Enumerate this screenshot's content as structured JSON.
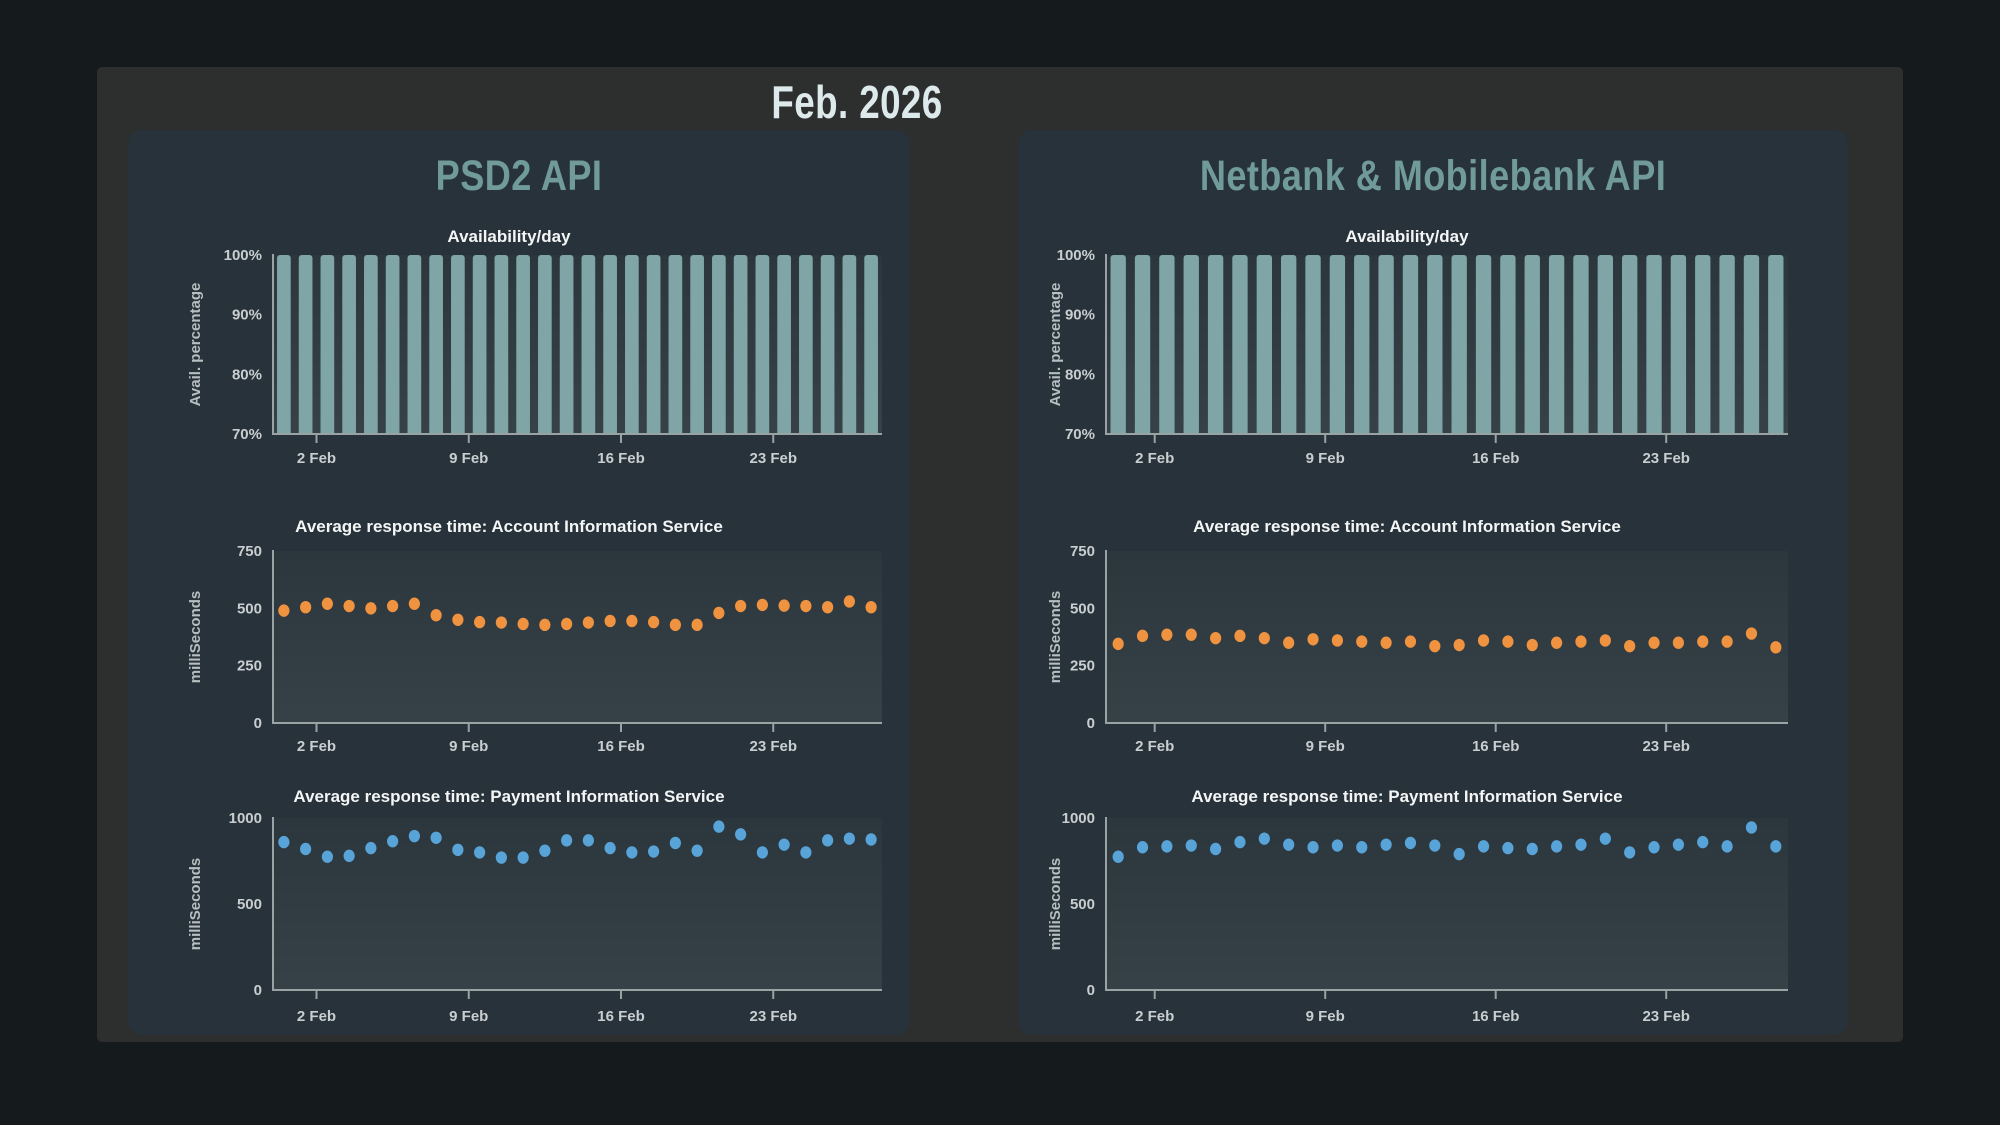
{
  "header": {
    "title": "Feb. 2026"
  },
  "panels": [
    {
      "title": "PSD2 API"
    },
    {
      "title": "Netbank & Mobilebank API"
    }
  ],
  "colors": {
    "page_background": "#151a1c",
    "container_background": "#2d2e2e",
    "card_background": "#27323a",
    "panel_title": "#719a9a",
    "bar_teal": "#7fa5a6",
    "dot_orange": "#f09340",
    "dot_blue": "#58a4d8",
    "axis_line": "#99a3a4",
    "tick_text": "#c9cfd0",
    "title_text": "#f4f6f6"
  },
  "chart_data": [
    {
      "panel": 0,
      "slot": 0,
      "type": "bar",
      "title": "Availability/day",
      "ylabel": "Avail. percentage",
      "ylim": [
        70,
        100
      ],
      "yticks": [
        {
          "v": 70,
          "label": "70%"
        },
        {
          "v": 80,
          "label": "80%"
        },
        {
          "v": 90,
          "label": "90%"
        },
        {
          "v": 100,
          "label": "100%"
        }
      ],
      "xticks": [
        {
          "day": 2,
          "label": "2 Feb"
        },
        {
          "day": 9,
          "label": "9 Feb"
        },
        {
          "day": 16,
          "label": "16 Feb"
        },
        {
          "day": 23,
          "label": "23 Feb"
        }
      ],
      "days": 28,
      "color": "#7fa5a6",
      "values": [
        100,
        100,
        100,
        100,
        100,
        100,
        100,
        100,
        100,
        100,
        100,
        100,
        100,
        100,
        100,
        100,
        100,
        100,
        100,
        100,
        100,
        100,
        100,
        100,
        100,
        100,
        100,
        100
      ]
    },
    {
      "panel": 0,
      "slot": 1,
      "type": "scatter",
      "title": "Average response time: Account Information Service",
      "ylabel": "milliSeconds",
      "ylim": [
        0,
        750
      ],
      "yticks": [
        {
          "v": 0,
          "label": "0"
        },
        {
          "v": 250,
          "label": "250"
        },
        {
          "v": 500,
          "label": "500"
        },
        {
          "v": 750,
          "label": "750"
        }
      ],
      "xticks": [
        {
          "day": 2,
          "label": "2 Feb"
        },
        {
          "day": 9,
          "label": "9 Feb"
        },
        {
          "day": 16,
          "label": "16 Feb"
        },
        {
          "day": 23,
          "label": "23 Feb"
        }
      ],
      "days": 28,
      "color": "#f09340",
      "values": [
        490,
        505,
        520,
        510,
        500,
        510,
        520,
        470,
        450,
        440,
        438,
        432,
        428,
        432,
        438,
        445,
        445,
        440,
        428,
        428,
        480,
        510,
        515,
        512,
        510,
        505,
        530,
        505
      ]
    },
    {
      "panel": 0,
      "slot": 2,
      "type": "scatter",
      "title": "Average response time: Payment Information Service",
      "ylabel": "milliSeconds",
      "ylim": [
        0,
        1000
      ],
      "yticks": [
        {
          "v": 0,
          "label": "0"
        },
        {
          "v": 500,
          "label": "500"
        },
        {
          "v": 1000,
          "label": "1000"
        }
      ],
      "xticks": [
        {
          "day": 2,
          "label": "2 Feb"
        },
        {
          "day": 9,
          "label": "9 Feb"
        },
        {
          "day": 16,
          "label": "16 Feb"
        },
        {
          "day": 23,
          "label": "23 Feb"
        }
      ],
      "days": 28,
      "color": "#58a4d8",
      "values": [
        860,
        820,
        775,
        780,
        825,
        865,
        895,
        885,
        815,
        800,
        770,
        770,
        810,
        870,
        870,
        825,
        800,
        805,
        855,
        810,
        950,
        905,
        800,
        845,
        800,
        870,
        880,
        875
      ]
    },
    {
      "panel": 1,
      "slot": 0,
      "type": "bar",
      "title": "Availability/day",
      "ylabel": "Avail. percentage",
      "ylim": [
        70,
        100
      ],
      "yticks": [
        {
          "v": 70,
          "label": "70%"
        },
        {
          "v": 80,
          "label": "80%"
        },
        {
          "v": 90,
          "label": "90%"
        },
        {
          "v": 100,
          "label": "100%"
        }
      ],
      "xticks": [
        {
          "day": 2,
          "label": "2 Feb"
        },
        {
          "day": 9,
          "label": "9 Feb"
        },
        {
          "day": 16,
          "label": "16 Feb"
        },
        {
          "day": 23,
          "label": "23 Feb"
        }
      ],
      "days": 28,
      "color": "#7fa5a6",
      "values": [
        100,
        100,
        100,
        100,
        100,
        100,
        100,
        100,
        100,
        100,
        100,
        100,
        100,
        100,
        100,
        100,
        100,
        100,
        100,
        100,
        100,
        100,
        100,
        100,
        100,
        100,
        100,
        100
      ]
    },
    {
      "panel": 1,
      "slot": 1,
      "type": "scatter",
      "title": "Average response time: Account Information Service",
      "ylabel": "milliSeconds",
      "ylim": [
        0,
        750
      ],
      "yticks": [
        {
          "v": 0,
          "label": "0"
        },
        {
          "v": 250,
          "label": "250"
        },
        {
          "v": 500,
          "label": "500"
        },
        {
          "v": 750,
          "label": "750"
        }
      ],
      "xticks": [
        {
          "day": 2,
          "label": "2 Feb"
        },
        {
          "day": 9,
          "label": "9 Feb"
        },
        {
          "day": 16,
          "label": "16 Feb"
        },
        {
          "day": 23,
          "label": "23 Feb"
        }
      ],
      "days": 28,
      "color": "#f09340",
      "values": [
        345,
        380,
        385,
        385,
        370,
        380,
        370,
        350,
        365,
        360,
        355,
        350,
        355,
        335,
        340,
        360,
        355,
        340,
        350,
        355,
        360,
        335,
        350,
        350,
        355,
        355,
        390,
        330
      ]
    },
    {
      "panel": 1,
      "slot": 2,
      "type": "scatter",
      "title": "Average response time: Payment Information Service",
      "ylabel": "milliSeconds",
      "ylim": [
        0,
        1000
      ],
      "yticks": [
        {
          "v": 0,
          "label": "0"
        },
        {
          "v": 500,
          "label": "500"
        },
        {
          "v": 1000,
          "label": "1000"
        }
      ],
      "xticks": [
        {
          "day": 2,
          "label": "2 Feb"
        },
        {
          "day": 9,
          "label": "9 Feb"
        },
        {
          "day": 16,
          "label": "16 Feb"
        },
        {
          "day": 23,
          "label": "23 Feb"
        }
      ],
      "days": 28,
      "color": "#58a4d8",
      "values": [
        775,
        830,
        835,
        840,
        820,
        860,
        880,
        845,
        830,
        840,
        830,
        845,
        855,
        840,
        790,
        835,
        825,
        820,
        835,
        845,
        880,
        800,
        830,
        845,
        860,
        835,
        945,
        835
      ]
    }
  ]
}
